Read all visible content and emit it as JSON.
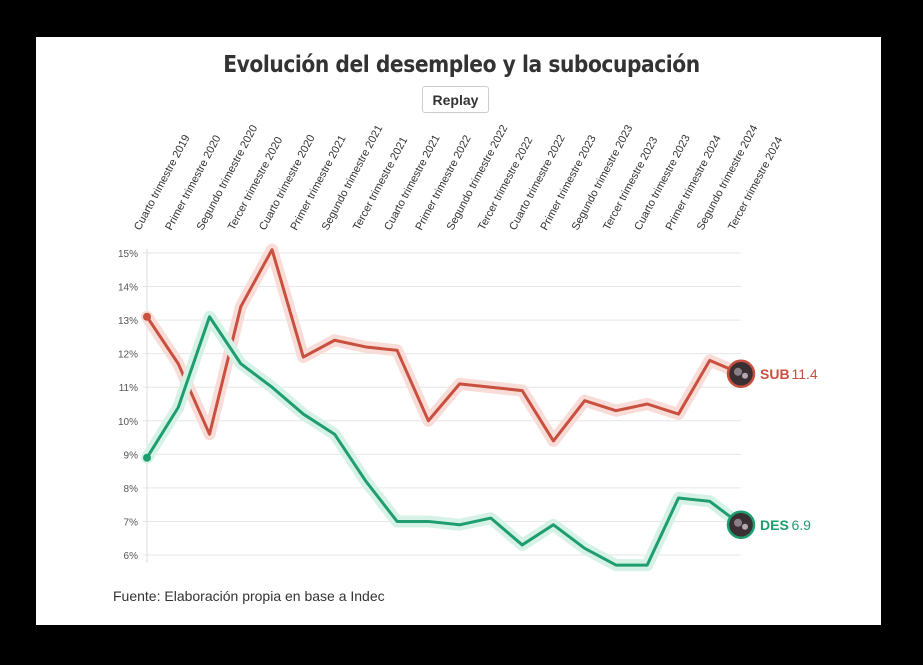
{
  "title": "Evolución del desempleo y la subocupación",
  "replay_label": "Replay",
  "source": "Fuente: Elaboración propia en base a Indec",
  "chart_data": {
    "type": "line",
    "title": "Evolución del desempleo y la subocupación",
    "categories": [
      "Cuarto trimestre 2019",
      "Primer trimestre 2020",
      "Segundo trimestre 2020",
      "Tercer trimestre 2020",
      "Cuarto trimestre 2020",
      "Primer trimestre 2021",
      "Segundo trimestre 2021",
      "Tercer trimestre 2021",
      "Cuarto trimestre 2021",
      "Primer trimestre 2022",
      "Segundo trimestre 2022",
      "Tercer trimestre 2022",
      "Cuarto trimestre 2022",
      "Primer trimestre 2023",
      "Segundo trimestre 2023",
      "Tercer trimestre 2023",
      "Cuarto trimestre 2023",
      "Primer trimestre 2024",
      "Segundo trimestre 2024",
      "Tercer trimestre 2024"
    ],
    "yticks": [
      "6%",
      "7%",
      "8%",
      "9%",
      "10%",
      "11%",
      "12%",
      "13%",
      "14%",
      "15%"
    ],
    "ylim": [
      6,
      15
    ],
    "grid": true,
    "series": [
      {
        "name": "SUB",
        "end_label": "SUB",
        "end_value": "11.4",
        "color": "#c9503f",
        "halo": "#f8dcd8",
        "values": [
          13.1,
          11.7,
          9.6,
          13.4,
          15.1,
          11.9,
          12.4,
          12.2,
          12.1,
          10.0,
          11.1,
          11.0,
          10.9,
          9.4,
          10.6,
          10.3,
          10.5,
          10.2,
          11.8,
          11.4
        ]
      },
      {
        "name": "DES",
        "end_label": "DES",
        "end_value": "6.9",
        "color": "#1e9e6e",
        "halo": "#d6f1e5",
        "values": [
          8.9,
          10.4,
          13.1,
          11.7,
          11.0,
          10.2,
          9.6,
          8.2,
          7.0,
          7.0,
          6.9,
          7.1,
          6.3,
          6.9,
          6.2,
          5.7,
          5.7,
          7.7,
          7.6,
          6.9
        ]
      }
    ]
  }
}
